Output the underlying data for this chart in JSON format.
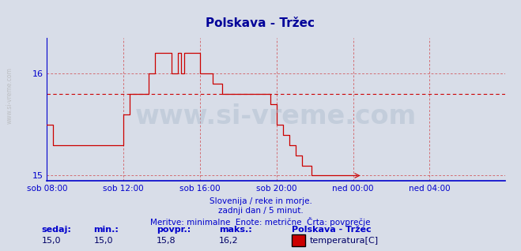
{
  "title": "Polskava - Tržec",
  "bg_color": "#d8dde8",
  "plot_bg_color": "#d8dde8",
  "line_color": "#cc0000",
  "avg_line_color": "#cc0000",
  "avg_value": 15.8,
  "y_min": 15.0,
  "y_max": 16.2,
  "y_tick_values": [
    15,
    16
  ],
  "x_tick_labels": [
    "sob 08:00",
    "sob 12:00",
    "sob 16:00",
    "sob 20:00",
    "ned 00:00",
    "ned 04:00"
  ],
  "x_tick_positions": [
    0,
    96,
    192,
    288,
    384,
    480
  ],
  "total_points": 576,
  "subtitle_lines": [
    "Slovenija / reke in morje.",
    "zadnji dan / 5 minut.",
    "Meritve: minimalne  Enote: metrične  Črta: povprečje"
  ],
  "footer_labels": [
    "sedaj:",
    "min.:",
    "povpr.:",
    "maks.:"
  ],
  "footer_values": [
    "15,0",
    "15,0",
    "15,8",
    "16,2"
  ],
  "legend_label": "Polskava - Tržec",
  "legend_item": "temperatura[C]",
  "legend_color": "#cc0000",
  "watermark_text": "www.si-vreme.com",
  "left_watermark": "www.si-vreme.com",
  "title_color": "#000099",
  "subtitle_color": "#0000cc",
  "footer_label_color": "#0000cc",
  "footer_value_color": "#000066",
  "grid_color": "#cc0000",
  "axis_color": "#0000cc",
  "temperature_data": [
    15.5,
    15.5,
    15.5,
    15.5,
    15.5,
    15.5,
    15.5,
    15.5,
    15.3,
    15.3,
    15.3,
    15.3,
    15.3,
    15.3,
    15.3,
    15.3,
    15.3,
    15.3,
    15.3,
    15.3,
    15.3,
    15.3,
    15.3,
    15.3,
    15.3,
    15.3,
    15.3,
    15.3,
    15.3,
    15.3,
    15.3,
    15.3,
    15.3,
    15.3,
    15.3,
    15.3,
    15.3,
    15.3,
    15.3,
    15.3,
    15.3,
    15.3,
    15.3,
    15.3,
    15.3,
    15.3,
    15.3,
    15.3,
    15.3,
    15.3,
    15.3,
    15.3,
    15.3,
    15.3,
    15.3,
    15.3,
    15.3,
    15.3,
    15.3,
    15.3,
    15.3,
    15.3,
    15.3,
    15.3,
    15.3,
    15.3,
    15.3,
    15.3,
    15.3,
    15.3,
    15.3,
    15.3,
    15.3,
    15.3,
    15.3,
    15.3,
    15.3,
    15.3,
    15.3,
    15.3,
    15.3,
    15.3,
    15.3,
    15.3,
    15.3,
    15.3,
    15.3,
    15.3,
    15.3,
    15.3,
    15.3,
    15.3,
    15.3,
    15.3,
    15.3,
    15.3,
    15.6,
    15.6,
    15.6,
    15.6,
    15.6,
    15.6,
    15.6,
    15.6,
    15.8,
    15.8,
    15.8,
    15.8,
    15.8,
    15.8,
    15.8,
    15.8,
    15.8,
    15.8,
    15.8,
    15.8,
    15.8,
    15.8,
    15.8,
    15.8,
    15.8,
    15.8,
    15.8,
    15.8,
    15.8,
    15.8,
    15.8,
    15.8,
    16.0,
    16.0,
    16.0,
    16.0,
    16.0,
    16.0,
    16.0,
    16.0,
    16.2,
    16.2,
    16.2,
    16.2,
    16.2,
    16.2,
    16.2,
    16.2,
    16.2,
    16.2,
    16.2,
    16.2,
    16.2,
    16.2,
    16.2,
    16.2,
    16.2,
    16.2,
    16.2,
    16.2,
    16.0,
    16.0,
    16.0,
    16.0,
    16.0,
    16.0,
    16.0,
    16.0,
    16.2,
    16.2,
    16.2,
    16.2,
    16.0,
    16.0,
    16.0,
    16.0,
    16.2,
    16.2,
    16.2,
    16.2,
    16.2,
    16.2,
    16.2,
    16.2,
    16.2,
    16.2,
    16.2,
    16.2,
    16.2,
    16.2,
    16.2,
    16.2,
    16.2,
    16.2,
    16.2,
    16.2,
    16.0,
    16.0,
    16.0,
    16.0,
    16.0,
    16.0,
    16.0,
    16.0,
    16.0,
    16.0,
    16.0,
    16.0,
    16.0,
    16.0,
    16.0,
    16.0,
    15.9,
    15.9,
    15.9,
    15.9,
    15.9,
    15.9,
    15.9,
    15.9,
    15.9,
    15.9,
    15.9,
    15.9,
    15.8,
    15.8,
    15.8,
    15.8,
    15.8,
    15.8,
    15.8,
    15.8,
    15.8,
    15.8,
    15.8,
    15.8,
    15.8,
    15.8,
    15.8,
    15.8,
    15.8,
    15.8,
    15.8,
    15.8,
    15.8,
    15.8,
    15.8,
    15.8,
    15.8,
    15.8,
    15.8,
    15.8,
    15.8,
    15.8,
    15.8,
    15.8,
    15.8,
    15.8,
    15.8,
    15.8,
    15.8,
    15.8,
    15.8,
    15.8,
    15.8,
    15.8,
    15.8,
    15.8,
    15.8,
    15.8,
    15.8,
    15.8,
    15.8,
    15.8,
    15.8,
    15.8,
    15.8,
    15.8,
    15.8,
    15.8,
    15.8,
    15.8,
    15.8,
    15.8,
    15.7,
    15.7,
    15.7,
    15.7,
    15.7,
    15.7,
    15.7,
    15.7,
    15.5,
    15.5,
    15.5,
    15.5,
    15.5,
    15.5,
    15.5,
    15.5,
    15.4,
    15.4,
    15.4,
    15.4,
    15.4,
    15.4,
    15.4,
    15.4,
    15.3,
    15.3,
    15.3,
    15.3,
    15.3,
    15.3,
    15.3,
    15.3,
    15.2,
    15.2,
    15.2,
    15.2,
    15.2,
    15.2,
    15.2,
    15.2,
    15.1,
    15.1,
    15.1,
    15.1,
    15.1,
    15.1,
    15.1,
    15.1,
    15.1,
    15.1,
    15.1,
    15.1,
    15.0,
    15.0,
    15.0,
    15.0,
    15.0,
    15.0,
    15.0,
    15.0,
    15.0,
    15.0,
    15.0,
    15.0,
    15.0,
    15.0,
    15.0,
    15.0,
    15.0,
    15.0,
    15.0,
    15.0,
    15.0,
    15.0,
    15.0,
    15.0,
    15.0,
    15.0,
    15.0,
    15.0,
    15.0,
    15.0,
    15.0,
    15.0,
    15.0,
    15.0,
    15.0,
    15.0,
    15.0,
    15.0,
    15.0,
    15.0,
    15.0,
    15.0,
    15.0,
    15.0,
    15.0,
    15.0,
    15.0,
    15.0,
    15.0,
    15.0,
    15.0,
    15.0,
    15.0,
    15.0,
    15.0,
    15.0,
    15.0
  ]
}
